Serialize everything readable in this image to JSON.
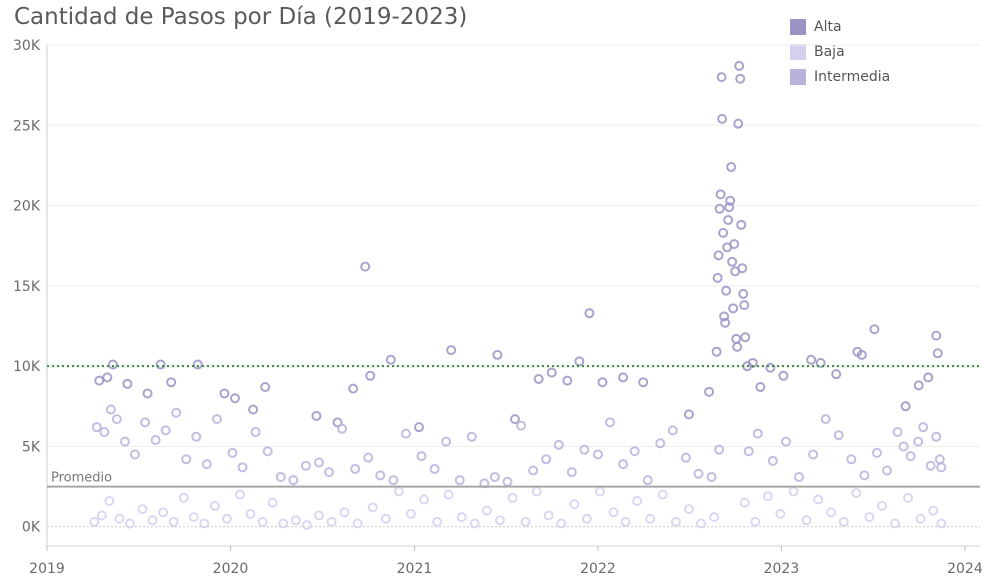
{
  "chart_data": {
    "type": "scatter",
    "title": "Cantidad de Pasos por Día (2019-2023)",
    "xlabel": "",
    "ylabel": "",
    "x_range": [
      "2019-01-01",
      "2024-01-31"
    ],
    "ylim": [
      -1200,
      30000
    ],
    "y_ticks": [
      0,
      5000,
      10000,
      15000,
      20000,
      25000,
      30000
    ],
    "y_tick_labels": [
      "0K",
      "5K",
      "10K",
      "15K",
      "20K",
      "25K",
      "30K"
    ],
    "x_ticks": [
      "2019-01-01",
      "2020-01-01",
      "2021-01-01",
      "2022-01-01",
      "2023-01-01",
      "2024-01-01"
    ],
    "x_tick_labels": [
      "2019",
      "2020",
      "2021",
      "2022",
      "2023",
      "2024"
    ],
    "grid": "horizontal",
    "legend_position": "top-right",
    "reference_lines": [
      {
        "label": "Promedio",
        "value": 2500,
        "style": "solid",
        "color": "#a6a6a6"
      },
      {
        "label": "",
        "value": 10000,
        "style": "dotted",
        "color": "#3a8a3a"
      }
    ],
    "series": [
      {
        "name": "Alta",
        "color": "#9b93c4",
        "points": [
          [
            "2019-04-15",
            9100
          ],
          [
            "2019-05-01",
            9300
          ],
          [
            "2019-05-12",
            10100
          ],
          [
            "2019-06-10",
            8900
          ],
          [
            "2019-07-20",
            8300
          ],
          [
            "2019-08-15",
            10100
          ],
          [
            "2019-09-05",
            9000
          ],
          [
            "2019-10-28",
            10100
          ],
          [
            "2019-12-20",
            8300
          ],
          [
            "2020-01-10",
            8000
          ],
          [
            "2020-02-15",
            7300
          ],
          [
            "2020-03-10",
            8700
          ],
          [
            "2020-06-20",
            6900
          ],
          [
            "2020-08-01",
            6500
          ],
          [
            "2020-09-01",
            8600
          ],
          [
            "2020-09-25",
            16200
          ],
          [
            "2020-10-05",
            9400
          ],
          [
            "2020-11-15",
            10400
          ],
          [
            "2021-01-10",
            6200
          ],
          [
            "2021-03-15",
            11000
          ],
          [
            "2021-06-15",
            10700
          ],
          [
            "2021-07-20",
            6700
          ],
          [
            "2021-09-05",
            9200
          ],
          [
            "2021-10-01",
            9600
          ],
          [
            "2021-11-01",
            9100
          ],
          [
            "2021-11-25",
            10300
          ],
          [
            "2021-12-15",
            13300
          ],
          [
            "2022-01-10",
            9000
          ],
          [
            "2022-02-20",
            9300
          ],
          [
            "2022-04-01",
            9000
          ],
          [
            "2022-07-01",
            7000
          ],
          [
            "2022-08-10",
            8400
          ],
          [
            "2022-08-25",
            10900
          ],
          [
            "2022-08-27",
            15500
          ],
          [
            "2022-08-29",
            16900
          ],
          [
            "2022-08-31",
            19800
          ],
          [
            "2022-09-02",
            20700
          ],
          [
            "2022-09-04",
            28000
          ],
          [
            "2022-09-05",
            25400
          ],
          [
            "2022-09-07",
            18300
          ],
          [
            "2022-09-09",
            13100
          ],
          [
            "2022-09-11",
            12700
          ],
          [
            "2022-09-13",
            14700
          ],
          [
            "2022-09-15",
            17400
          ],
          [
            "2022-09-17",
            19100
          ],
          [
            "2022-09-19",
            19900
          ],
          [
            "2022-09-21",
            20300
          ],
          [
            "2022-09-23",
            22400
          ],
          [
            "2022-09-25",
            16500
          ],
          [
            "2022-09-27",
            13600
          ],
          [
            "2022-09-29",
            17600
          ],
          [
            "2022-10-01",
            15900
          ],
          [
            "2022-10-03",
            11700
          ],
          [
            "2022-10-05",
            11200
          ],
          [
            "2022-10-07",
            25100
          ],
          [
            "2022-10-09",
            28700
          ],
          [
            "2022-10-11",
            27900
          ],
          [
            "2022-10-13",
            18800
          ],
          [
            "2022-10-15",
            16100
          ],
          [
            "2022-10-17",
            14500
          ],
          [
            "2022-10-19",
            13800
          ],
          [
            "2022-10-21",
            11800
          ],
          [
            "2022-10-25",
            10000
          ],
          [
            "2022-11-05",
            10200
          ],
          [
            "2022-11-20",
            8700
          ],
          [
            "2022-12-10",
            9900
          ],
          [
            "2023-01-05",
            9400
          ],
          [
            "2023-03-01",
            10400
          ],
          [
            "2023-03-20",
            10200
          ],
          [
            "2023-04-20",
            9500
          ],
          [
            "2023-06-01",
            10900
          ],
          [
            "2023-06-10",
            10700
          ],
          [
            "2023-07-05",
            12300
          ],
          [
            "2023-09-05",
            7500
          ],
          [
            "2023-10-01",
            8800
          ],
          [
            "2023-10-20",
            9300
          ],
          [
            "2023-11-05",
            11900
          ],
          [
            "2023-11-08",
            10800
          ]
        ]
      },
      {
        "name": "Baja",
        "color": "#d5d0ef",
        "points": [
          [
            "2019-04-05",
            300
          ],
          [
            "2019-04-20",
            700
          ],
          [
            "2019-05-05",
            1600
          ],
          [
            "2019-05-25",
            500
          ],
          [
            "2019-06-15",
            200
          ],
          [
            "2019-07-10",
            1100
          ],
          [
            "2019-07-30",
            400
          ],
          [
            "2019-08-20",
            900
          ],
          [
            "2019-09-10",
            300
          ],
          [
            "2019-09-30",
            1800
          ],
          [
            "2019-10-20",
            600
          ],
          [
            "2019-11-10",
            200
          ],
          [
            "2019-12-01",
            1300
          ],
          [
            "2019-12-25",
            500
          ],
          [
            "2020-01-20",
            2000
          ],
          [
            "2020-02-10",
            800
          ],
          [
            "2020-03-05",
            300
          ],
          [
            "2020-03-25",
            1500
          ],
          [
            "2020-04-15",
            200
          ],
          [
            "2020-05-10",
            400
          ],
          [
            "2020-06-01",
            100
          ],
          [
            "2020-06-25",
            700
          ],
          [
            "2020-07-20",
            300
          ],
          [
            "2020-08-15",
            900
          ],
          [
            "2020-09-10",
            200
          ],
          [
            "2020-10-10",
            1200
          ],
          [
            "2020-11-05",
            500
          ],
          [
            "2020-12-01",
            2200
          ],
          [
            "2020-12-25",
            800
          ],
          [
            "2021-01-20",
            1700
          ],
          [
            "2021-02-15",
            300
          ],
          [
            "2021-03-10",
            2000
          ],
          [
            "2021-04-05",
            600
          ],
          [
            "2021-05-01",
            200
          ],
          [
            "2021-05-25",
            1000
          ],
          [
            "2021-06-20",
            400
          ],
          [
            "2021-07-15",
            1800
          ],
          [
            "2021-08-10",
            300
          ],
          [
            "2021-09-01",
            2200
          ],
          [
            "2021-09-25",
            700
          ],
          [
            "2021-10-20",
            200
          ],
          [
            "2021-11-15",
            1400
          ],
          [
            "2021-12-10",
            500
          ],
          [
            "2022-01-05",
            2200
          ],
          [
            "2022-02-01",
            900
          ],
          [
            "2022-02-25",
            300
          ],
          [
            "2022-03-20",
            1600
          ],
          [
            "2022-04-15",
            500
          ],
          [
            "2022-05-10",
            2000
          ],
          [
            "2022-06-05",
            300
          ],
          [
            "2022-07-01",
            1100
          ],
          [
            "2022-07-25",
            200
          ],
          [
            "2022-08-20",
            600
          ],
          [
            "2022-10-20",
            1500
          ],
          [
            "2022-11-10",
            300
          ],
          [
            "2022-12-05",
            1900
          ],
          [
            "2022-12-30",
            800
          ],
          [
            "2023-01-25",
            2200
          ],
          [
            "2023-02-20",
            400
          ],
          [
            "2023-03-15",
            1700
          ],
          [
            "2023-04-10",
            900
          ],
          [
            "2023-05-05",
            300
          ],
          [
            "2023-05-30",
            2100
          ],
          [
            "2023-06-25",
            600
          ],
          [
            "2023-07-20",
            1300
          ],
          [
            "2023-08-15",
            200
          ],
          [
            "2023-09-10",
            1800
          ],
          [
            "2023-10-05",
            500
          ],
          [
            "2023-10-30",
            1000
          ],
          [
            "2023-11-15",
            200
          ]
        ]
      },
      {
        "name": "Intermedia",
        "color": "#b9b2dd",
        "points": [
          [
            "2019-04-10",
            6200
          ],
          [
            "2019-04-25",
            5900
          ],
          [
            "2019-05-08",
            7300
          ],
          [
            "2019-05-20",
            6700
          ],
          [
            "2019-06-05",
            5300
          ],
          [
            "2019-06-25",
            4500
          ],
          [
            "2019-07-15",
            6500
          ],
          [
            "2019-08-05",
            5400
          ],
          [
            "2019-08-25",
            6000
          ],
          [
            "2019-09-15",
            7100
          ],
          [
            "2019-10-05",
            4200
          ],
          [
            "2019-10-25",
            5600
          ],
          [
            "2019-11-15",
            3900
          ],
          [
            "2019-12-05",
            6700
          ],
          [
            "2020-01-05",
            4600
          ],
          [
            "2020-01-25",
            3700
          ],
          [
            "2020-02-20",
            5900
          ],
          [
            "2020-03-15",
            4700
          ],
          [
            "2020-04-10",
            3100
          ],
          [
            "2020-05-05",
            2900
          ],
          [
            "2020-05-30",
            3800
          ],
          [
            "2020-06-25",
            4000
          ],
          [
            "2020-07-15",
            3400
          ],
          [
            "2020-08-10",
            6100
          ],
          [
            "2020-09-05",
            3600
          ],
          [
            "2020-10-01",
            4300
          ],
          [
            "2020-10-25",
            3200
          ],
          [
            "2020-11-20",
            2900
          ],
          [
            "2020-12-15",
            5800
          ],
          [
            "2021-01-15",
            4400
          ],
          [
            "2021-02-10",
            3600
          ],
          [
            "2021-03-05",
            5300
          ],
          [
            "2021-04-01",
            2900
          ],
          [
            "2021-04-25",
            5600
          ],
          [
            "2021-05-20",
            2700
          ],
          [
            "2021-06-10",
            3100
          ],
          [
            "2021-07-05",
            2800
          ],
          [
            "2021-08-01",
            6300
          ],
          [
            "2021-08-25",
            3500
          ],
          [
            "2021-09-20",
            4200
          ],
          [
            "2021-10-15",
            5100
          ],
          [
            "2021-11-10",
            3400
          ],
          [
            "2021-12-05",
            4800
          ],
          [
            "2022-01-01",
            4500
          ],
          [
            "2022-01-25",
            6500
          ],
          [
            "2022-02-20",
            3900
          ],
          [
            "2022-03-15",
            4700
          ],
          [
            "2022-04-10",
            2900
          ],
          [
            "2022-05-05",
            5200
          ],
          [
            "2022-05-30",
            6000
          ],
          [
            "2022-06-25",
            4300
          ],
          [
            "2022-07-20",
            3300
          ],
          [
            "2022-08-15",
            3100
          ],
          [
            "2022-08-30",
            4800
          ],
          [
            "2022-10-28",
            4700
          ],
          [
            "2022-11-15",
            5800
          ],
          [
            "2022-12-15",
            4100
          ],
          [
            "2023-01-10",
            5300
          ],
          [
            "2023-02-05",
            3100
          ],
          [
            "2023-03-05",
            4500
          ],
          [
            "2023-03-30",
            6700
          ],
          [
            "2023-04-25",
            5700
          ],
          [
            "2023-05-20",
            4200
          ],
          [
            "2023-06-15",
            3200
          ],
          [
            "2023-07-10",
            4600
          ],
          [
            "2023-07-30",
            3500
          ],
          [
            "2023-08-20",
            5900
          ],
          [
            "2023-09-01",
            5000
          ],
          [
            "2023-09-15",
            4400
          ],
          [
            "2023-09-30",
            5300
          ],
          [
            "2023-10-10",
            6200
          ],
          [
            "2023-10-25",
            3800
          ],
          [
            "2023-11-05",
            5600
          ],
          [
            "2023-11-12",
            4200
          ],
          [
            "2023-11-15",
            3700
          ]
        ]
      }
    ]
  }
}
